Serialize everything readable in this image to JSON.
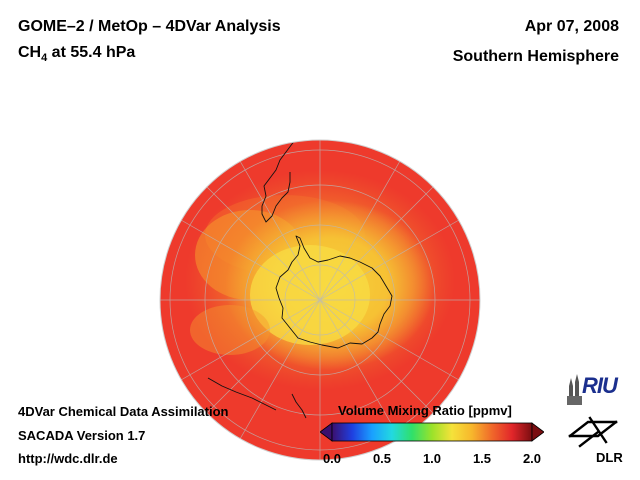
{
  "header": {
    "title_line1": "GOME–2 / MetOp – 4DVar Analysis",
    "species": "CH",
    "species_sub": "4",
    "level": " at 55.4 hPa",
    "date": "Apr 07, 2008",
    "hemisphere": "Southern Hemisphere"
  },
  "footer": {
    "line1": "4DVar Chemical Data Assimilation",
    "line2": "SACADA Version 1.7",
    "line3": "http://wdc.dlr.de"
  },
  "colorbar": {
    "title": "Volume Mixing Ratio [ppmv]",
    "ticks": [
      "0.0",
      "0.5",
      "1.0",
      "1.5",
      "2.0"
    ],
    "range": [
      0.0,
      2.0
    ],
    "colors": [
      "#3b0f6e",
      "#1f3fe0",
      "#1aa0ff",
      "#22d9e0",
      "#2fe06a",
      "#9be22a",
      "#f5e23a",
      "#f7b62c",
      "#f0682a",
      "#e2262a",
      "#7a0d10"
    ]
  },
  "logos": {
    "riu": "RIU",
    "dlr": "DLR"
  },
  "map": {
    "projection": "orthographic",
    "center": "South Pole",
    "field": "CH4 volume mixing ratio",
    "background_value": 1.75,
    "polar_minimum_value": 1.3
  }
}
